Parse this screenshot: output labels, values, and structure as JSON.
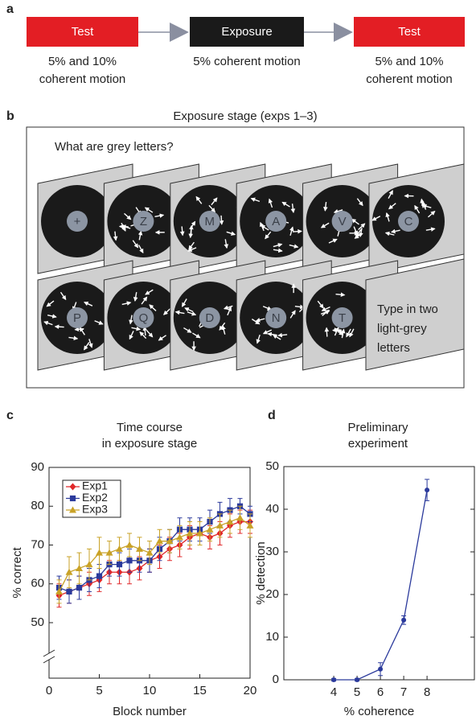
{
  "panel_a": {
    "label": "a",
    "stages": [
      {
        "title": "Test",
        "caption": [
          "5% and 10%",
          "coherent motion"
        ]
      },
      {
        "title": "Exposure",
        "caption": [
          "5% coherent motion"
        ]
      },
      {
        "title": "Test",
        "caption": [
          "5% and 10%",
          "coherent motion"
        ]
      }
    ]
  },
  "panel_b": {
    "label": "b",
    "title": "Exposure stage (exps 1–3)",
    "question": "What are grey letters?",
    "row1": [
      "+",
      "Z",
      "M",
      "A",
      "V",
      "C"
    ],
    "row2": [
      "P",
      "Q",
      "D",
      "N",
      "T"
    ],
    "final_text": [
      "Type in two",
      "light-grey",
      "letters"
    ]
  },
  "chart_data": [
    {
      "type": "line",
      "label": "c",
      "title": [
        "Time course",
        "in exposure stage"
      ],
      "xlabel": "Block number",
      "ylabel": "% correct",
      "x": [
        1,
        2,
        3,
        4,
        5,
        6,
        7,
        8,
        9,
        10,
        11,
        12,
        13,
        14,
        15,
        16,
        17,
        18,
        19,
        20
      ],
      "xlim": [
        0,
        20
      ],
      "ylim": [
        35.7,
        90
      ],
      "xticks": [
        0,
        5,
        10,
        15,
        20
      ],
      "yticks": [
        50,
        60,
        70,
        80,
        90
      ],
      "axis_break": true,
      "legend": "upper left",
      "series": [
        {
          "name": "Exp1",
          "color": "#e0282a",
          "marker": "diamond",
          "values": [
            57,
            58,
            59,
            60,
            61,
            63,
            63,
            63,
            64,
            66,
            67,
            69,
            70,
            72,
            73,
            72,
            73,
            75,
            76,
            76
          ],
          "errors": [
            3,
            3,
            3,
            3,
            3,
            3,
            3,
            3,
            3,
            3,
            3,
            3,
            3,
            3,
            3,
            3,
            3,
            3,
            3,
            3
          ]
        },
        {
          "name": "Exp2",
          "color": "#2b3a9c",
          "marker": "square",
          "values": [
            59,
            58,
            59,
            61,
            62,
            65,
            65,
            66,
            66,
            66,
            69,
            71,
            74,
            74,
            74,
            76,
            78,
            79,
            80,
            78
          ],
          "errors": [
            3,
            3,
            3,
            3,
            3,
            3,
            3,
            3,
            3,
            3,
            3,
            3,
            3,
            3,
            3,
            3,
            3,
            3,
            2,
            2
          ]
        },
        {
          "name": "Exp3",
          "color": "#c9a227",
          "marker": "triangle",
          "values": [
            58,
            63,
            64,
            65,
            68,
            68,
            69,
            70,
            69,
            68,
            71,
            71,
            72,
            73,
            73,
            74,
            75,
            76,
            77,
            75
          ],
          "errors": [
            3,
            4,
            4,
            4,
            4,
            3,
            3,
            3,
            3,
            3,
            3,
            3,
            3,
            3,
            3,
            3,
            3,
            3,
            3,
            3
          ]
        }
      ]
    },
    {
      "type": "line",
      "label": "d",
      "title": [
        "Preliminary",
        "experiment"
      ],
      "xlabel": "% coherence",
      "ylabel": "% detection",
      "x": [
        4,
        5,
        6,
        7,
        8
      ],
      "xlim": [
        1.86,
        10.03
      ],
      "ylim": [
        0,
        50
      ],
      "xticks": [
        4,
        5,
        6,
        7,
        8
      ],
      "yticks": [
        0,
        10,
        20,
        30,
        40,
        50
      ],
      "series": [
        {
          "color": "#2b3a9c",
          "marker": "circle",
          "values": [
            0,
            0,
            2.5,
            14,
            44.5
          ],
          "errors": [
            0.3,
            0.3,
            1.5,
            1,
            2.5
          ]
        }
      ]
    }
  ]
}
